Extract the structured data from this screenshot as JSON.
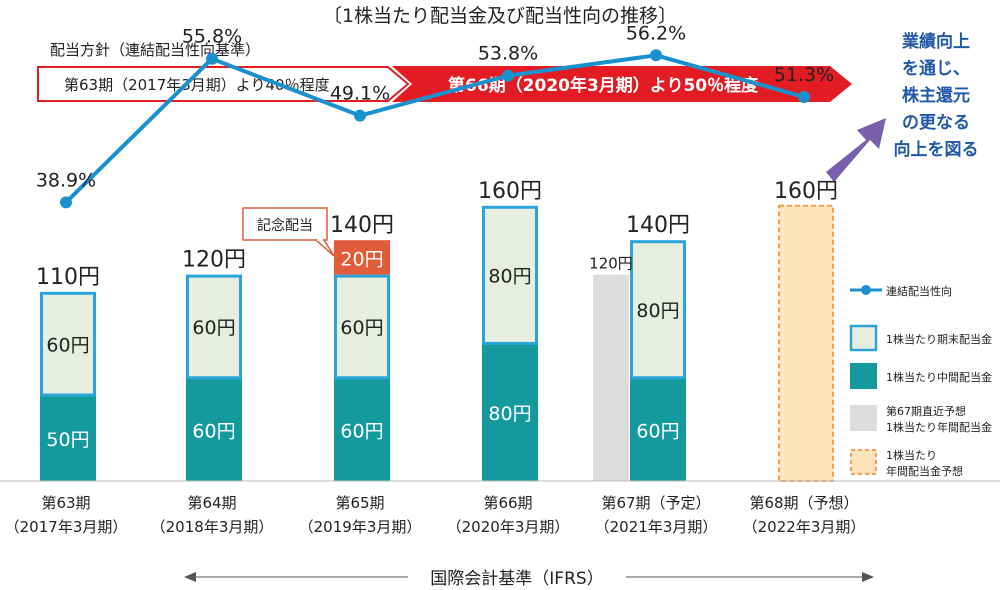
{
  "chart_data": {
    "type": "bar",
    "title": "〔1株当たり配当金及び配当性向の推移〕",
    "policy": {
      "label": "配当方針（連結配当性向基準）",
      "arrow1": "第63期（2017年3月期）より40％程度",
      "arrow2": "第66期（2020年3月期）より50％程度"
    },
    "callout": [
      "業績向上",
      "を通じ、",
      "株主還元",
      "の更なる",
      "向上を図る"
    ],
    "categories": [
      [
        "第63期",
        "（2017年3月期）"
      ],
      [
        "第64期",
        "（2018年3月期）"
      ],
      [
        "第65期",
        "（2019年3月期）"
      ],
      [
        "第66期",
        "（2020年3月期）"
      ],
      [
        "第67期（予定）",
        "（2021年3月期）"
      ],
      [
        "第68期（予想）",
        "（2022年3月期）"
      ]
    ],
    "series": [
      {
        "name": "1株当たり中間配当金",
        "values": [
          50,
          60,
          60,
          80,
          60,
          null
        ],
        "labels": [
          "50円",
          "60円",
          "60円",
          "80円",
          "60円",
          ""
        ]
      },
      {
        "name": "1株当たり期末配当金",
        "values": [
          60,
          60,
          60,
          80,
          80,
          null
        ],
        "labels": [
          "60円",
          "60円",
          "60円",
          "80円",
          "80円",
          ""
        ]
      },
      {
        "name": "記念配当",
        "values": [
          null,
          null,
          20,
          null,
          null,
          null
        ],
        "labels": [
          "",
          "",
          "20円",
          "",
          "",
          ""
        ]
      },
      {
        "name": "第67期直近予想 1株当たり年間配当金",
        "values": [
          null,
          null,
          null,
          null,
          120,
          null
        ],
        "labels": [
          "",
          "",
          "",
          "",
          "120円",
          ""
        ]
      },
      {
        "name": "1株当たり 年間配当金予想",
        "values": [
          null,
          null,
          null,
          null,
          null,
          160
        ],
        "labels": [
          "",
          "",
          "",
          "",
          "",
          ""
        ]
      }
    ],
    "totals": [
      "110円",
      "120円",
      "140円",
      "160円",
      "140円",
      "160円"
    ],
    "commemorative_label": "記念配当",
    "payout_ratio": {
      "name": "連結配当性向",
      "values": [
        38.9,
        55.8,
        49.1,
        53.8,
        56.2,
        51.3
      ],
      "labels": [
        "38.9%",
        "55.8%",
        "49.1%",
        "53.8%",
        "56.2%",
        "51.3%"
      ]
    },
    "legend": [
      {
        "key": "line",
        "text": "連結配当性向"
      },
      {
        "key": "final",
        "text": "1株当たり期末配当金"
      },
      {
        "key": "interim",
        "text": "1株当たり中間配当金"
      },
      {
        "key": "gray",
        "text": "第67期直近予想\n1株当たり年間配当金"
      },
      {
        "key": "forecast",
        "text": "1株当たり\n年間配当金予想"
      }
    ],
    "footer": "国際会計基準（IFRS）",
    "colors": {
      "interim": "#149a9c",
      "final_fill": "#e7eedf",
      "final_stroke": "#2aa5dc",
      "commemorative": "#e05c3b",
      "gray": "#dcdcdc",
      "forecast_fill": "#fde3b9",
      "forecast_stroke": "#f3a04c",
      "line": "#1a91cf",
      "red": "#e31c24",
      "callout_arrow": "#7a5fae",
      "callout_text": "#2158a8"
    }
  }
}
